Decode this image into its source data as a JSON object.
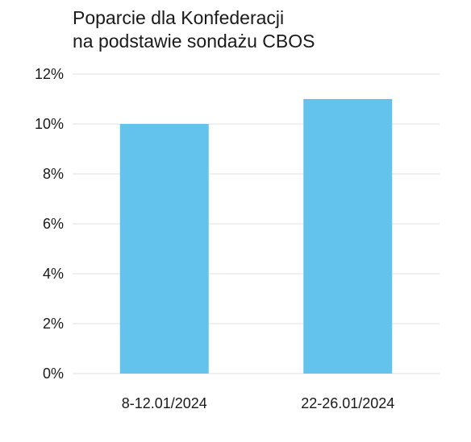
{
  "title": {
    "line1": "Poparcie dla Konfederacji",
    "line2": "na podstawie sondażu CBOS"
  },
  "colors": {
    "bar": "#63c3ec",
    "grid": "#e6e6e6",
    "text": "#1a1a1a"
  },
  "chart_data": {
    "type": "bar",
    "title": "Poparcie dla Konfederacji na podstawie sondażu CBOS",
    "categories": [
      "8-12.01/2024",
      "22-26.01/2024"
    ],
    "values": [
      10,
      11
    ],
    "unit": "%",
    "xlabel": "",
    "ylabel": "",
    "ylim": [
      0,
      12
    ],
    "yticks": [
      0,
      2,
      4,
      6,
      8,
      10,
      12
    ],
    "ytick_labels": [
      "0%",
      "2%",
      "4%",
      "6%",
      "8%",
      "10%",
      "12%"
    ],
    "grid": true,
    "legend": "none"
  }
}
